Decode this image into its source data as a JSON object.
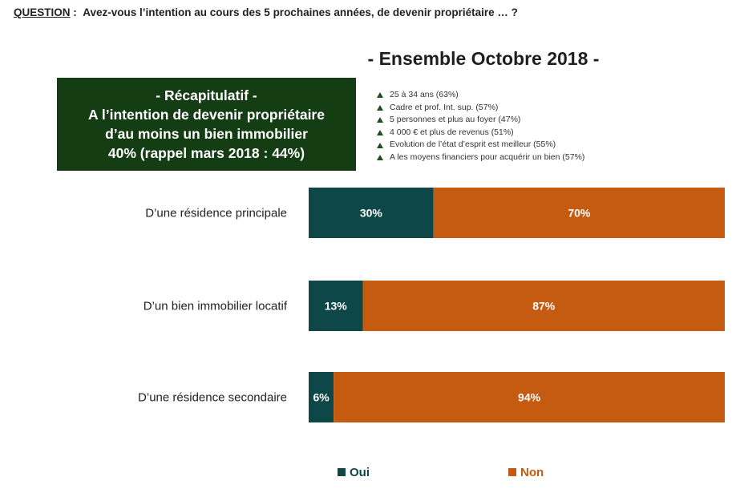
{
  "header": {
    "question_label": "QUESTION",
    "question_text": "Avez-vous l’intention au cours des 5 prochaines années, de devenir propriétaire … ?"
  },
  "ensemble_title": "- Ensemble Octobre 2018 -",
  "recap": {
    "line1": "- Récapitulatif -",
    "line2": "A l’intention de devenir propriétaire",
    "line3": "d’au moins un bien immobilier",
    "line4": "40% (rappel mars 2018 : 44%)"
  },
  "profiles": [
    "25 à 34 ans (63%)",
    "Cadre et prof. Int. sup. (57%)",
    "5 personnes et plus au foyer (47%)",
    "4 000 € et plus de revenus (51%)",
    "Evolution de l’état d’esprit est meilleur (55%)",
    "A les moyens financiers pour acquérir un bien (57%)"
  ],
  "colors": {
    "oui": "#0d4747",
    "non": "#c55a11",
    "recap_bg": "#143d14",
    "triangle": "#1e4d1e"
  },
  "chart_data": {
    "type": "bar",
    "orientation": "horizontal",
    "stacked": true,
    "percent": true,
    "categories": [
      "D’une résidence principale",
      "D’un bien immobilier locatif",
      "D’une résidence secondaire"
    ],
    "series": [
      {
        "name": "Oui",
        "values": [
          30,
          13,
          6
        ],
        "labels": [
          "30%",
          "13%",
          "6%"
        ],
        "color": "#0d4747"
      },
      {
        "name": "Non",
        "values": [
          70,
          87,
          94
        ],
        "labels": [
          "70%",
          "87%",
          "94%"
        ],
        "color": "#c55a11"
      }
    ],
    "xlim": [
      0,
      100
    ],
    "grid": false,
    "legend_position": "bottom"
  }
}
